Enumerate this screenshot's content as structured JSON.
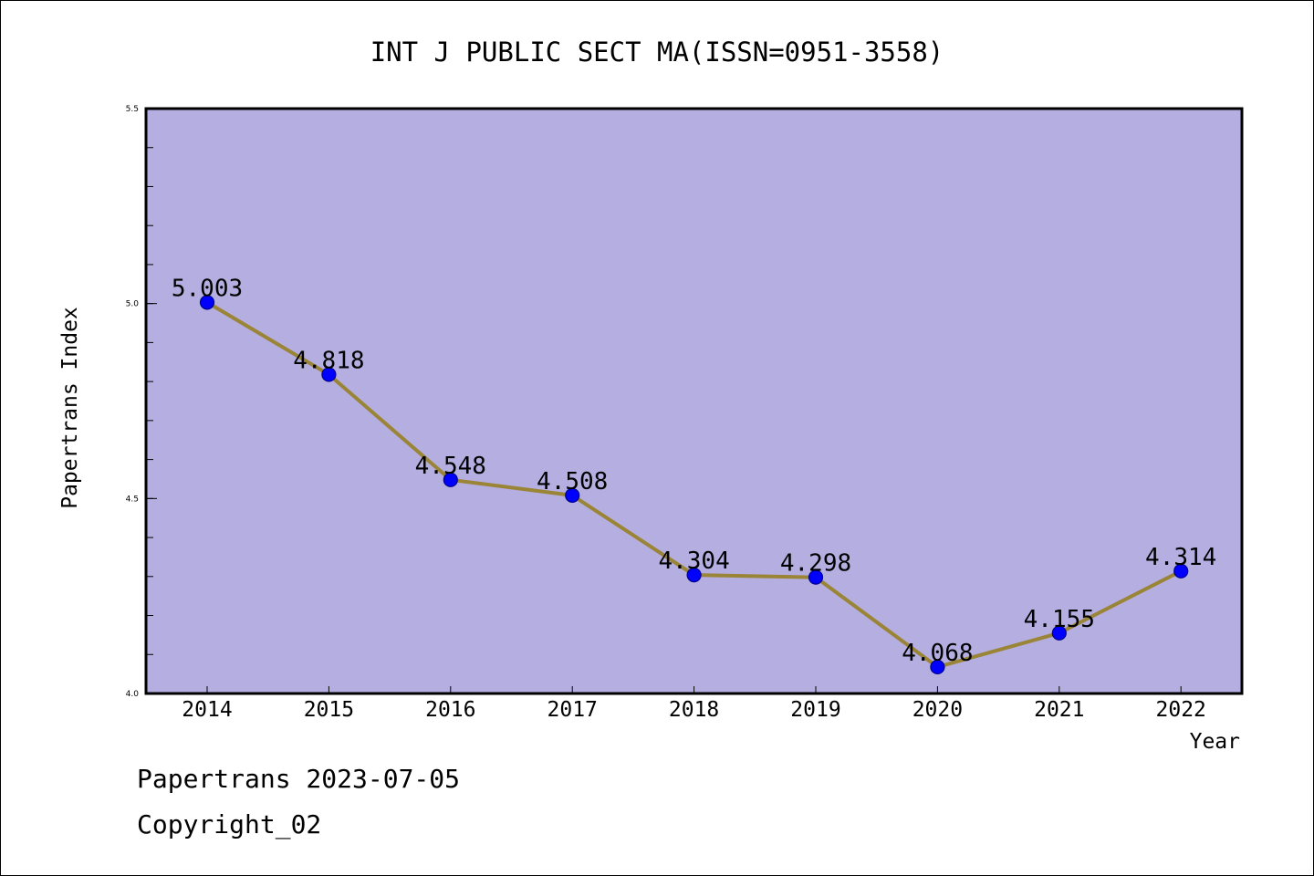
{
  "colors": {
    "plot_background": "#b5afe1",
    "line": "#9a8436",
    "marker_fill": "#0000ff",
    "marker_stroke": "#00008b",
    "frame": "#000000"
  },
  "footer": {
    "line1": "Papertrans 2023-07-05",
    "line2": "Copyright_02"
  },
  "chart_data": {
    "type": "line",
    "title": "INT J PUBLIC SECT MA(ISSN=0951-3558)",
    "xlabel": "Year",
    "ylabel": "Papertrans Index",
    "categories": [
      "2014",
      "2015",
      "2016",
      "2017",
      "2018",
      "2019",
      "2020",
      "2021",
      "2022"
    ],
    "series": [
      {
        "values": [
          5.003,
          4.818,
          4.548,
          4.508,
          4.304,
          4.298,
          4.068,
          4.155,
          4.314
        ],
        "data_labels": [
          "5.003",
          "4.818",
          "4.548",
          "4.508",
          "4.304",
          "4.298",
          "4.068",
          "4.155",
          "4.314"
        ]
      }
    ],
    "ylim": [
      4.0,
      5.5
    ],
    "yticks": [
      "4.0",
      "4.5",
      "5.0",
      "5.5"
    ],
    "y_minor_step": 0.1,
    "grid": false,
    "legend": "none"
  }
}
